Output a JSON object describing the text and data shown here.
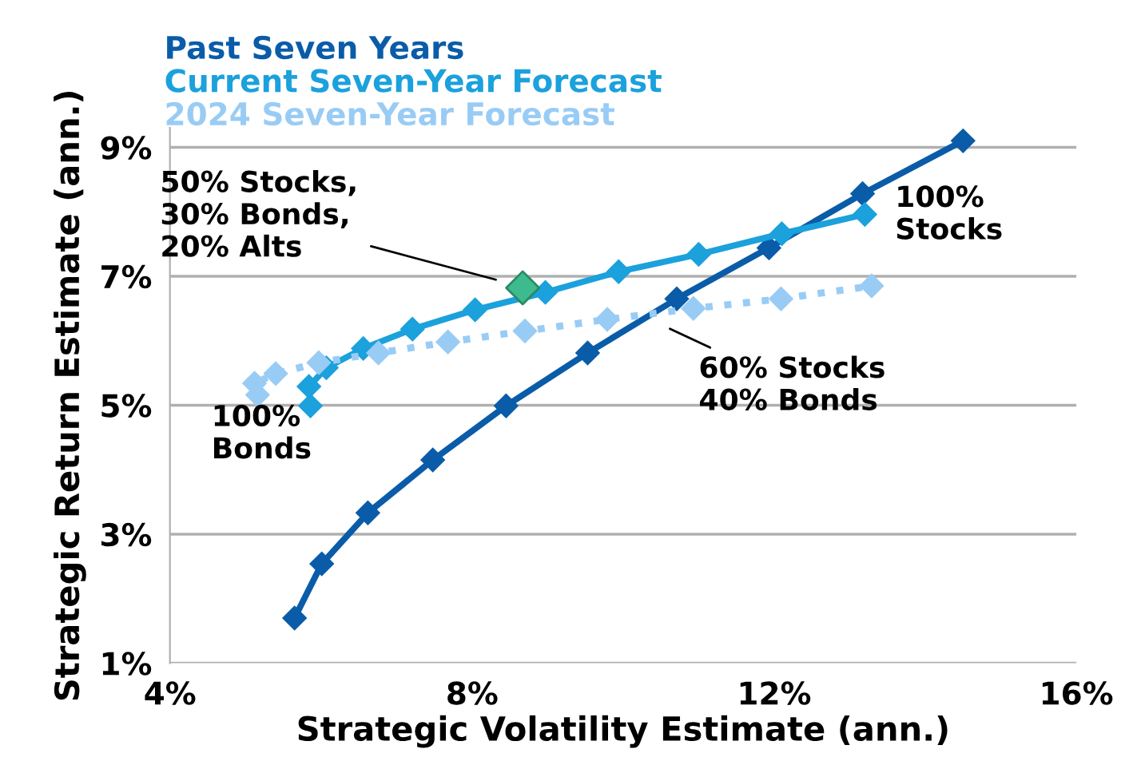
{
  "chart_data": {
    "type": "line",
    "xlabel": "Strategic Volatility Estimate (ann.)",
    "ylabel": "Strategic Return Estimate (ann.)",
    "xlim": [
      4,
      16
    ],
    "xticks": [
      {
        "value": 4,
        "label": "4%"
      },
      {
        "value": 8,
        "label": "8%"
      },
      {
        "value": 12,
        "label": "12%"
      },
      {
        "value": 16,
        "label": "16%"
      }
    ],
    "ylim": [
      1,
      9.3
    ],
    "yticks": [
      {
        "value": 1,
        "label": "1%"
      },
      {
        "value": 3,
        "label": "3%"
      },
      {
        "value": 5,
        "label": "5%"
      },
      {
        "value": 7,
        "label": "7%"
      },
      {
        "value": 9,
        "label": "9%"
      }
    ],
    "grid": "y",
    "legend": "top left",
    "marker": "diamond",
    "series": [
      {
        "name": "Past Seven Years",
        "color": "#0a5ca8",
        "line_style": "solid",
        "x": [
          5.65,
          6.01,
          6.62,
          7.48,
          8.45,
          9.53,
          10.71,
          11.93,
          13.17,
          14.5
        ],
        "values": [
          1.7,
          2.54,
          3.33,
          4.15,
          4.99,
          5.81,
          6.65,
          7.44,
          8.28,
          9.1
        ]
      },
      {
        "name": "Current Seven-Year Forecast",
        "color": "#1ba1dc",
        "line_style": "solid",
        "x": [
          5.86,
          5.84,
          6.07,
          6.56,
          7.21,
          8.04,
          8.97,
          9.94,
          11.0,
          12.1,
          13.2
        ],
        "values": [
          4.99,
          5.29,
          5.58,
          5.88,
          6.18,
          6.48,
          6.75,
          7.07,
          7.34,
          7.66,
          7.96
        ]
      },
      {
        "name": "2024 Seven-Year Forecast",
        "color": "#99ccf5",
        "line_style": "dotted",
        "x": [
          5.16,
          5.12,
          5.4,
          5.97,
          6.76,
          7.68,
          8.7,
          9.79,
          10.93,
          12.09,
          13.29
        ],
        "values": [
          5.16,
          5.34,
          5.49,
          5.66,
          5.81,
          5.98,
          6.15,
          6.33,
          6.5,
          6.65,
          6.85
        ]
      },
      {
        "type": "scatter",
        "color": "#3dbb8f",
        "x": [
          8.67
        ],
        "values": [
          6.82
        ]
      }
    ],
    "annotations": [
      {
        "text": "50% Stocks,\n30% Bonds,\n20% Alts",
        "x": 8.4,
        "y": 6.92
      },
      {
        "text": "60% Stocks\n40% Bonds",
        "x": 10.3,
        "y": 6.36
      },
      "100%\nStocks",
      "100%\nBonds"
    ]
  }
}
